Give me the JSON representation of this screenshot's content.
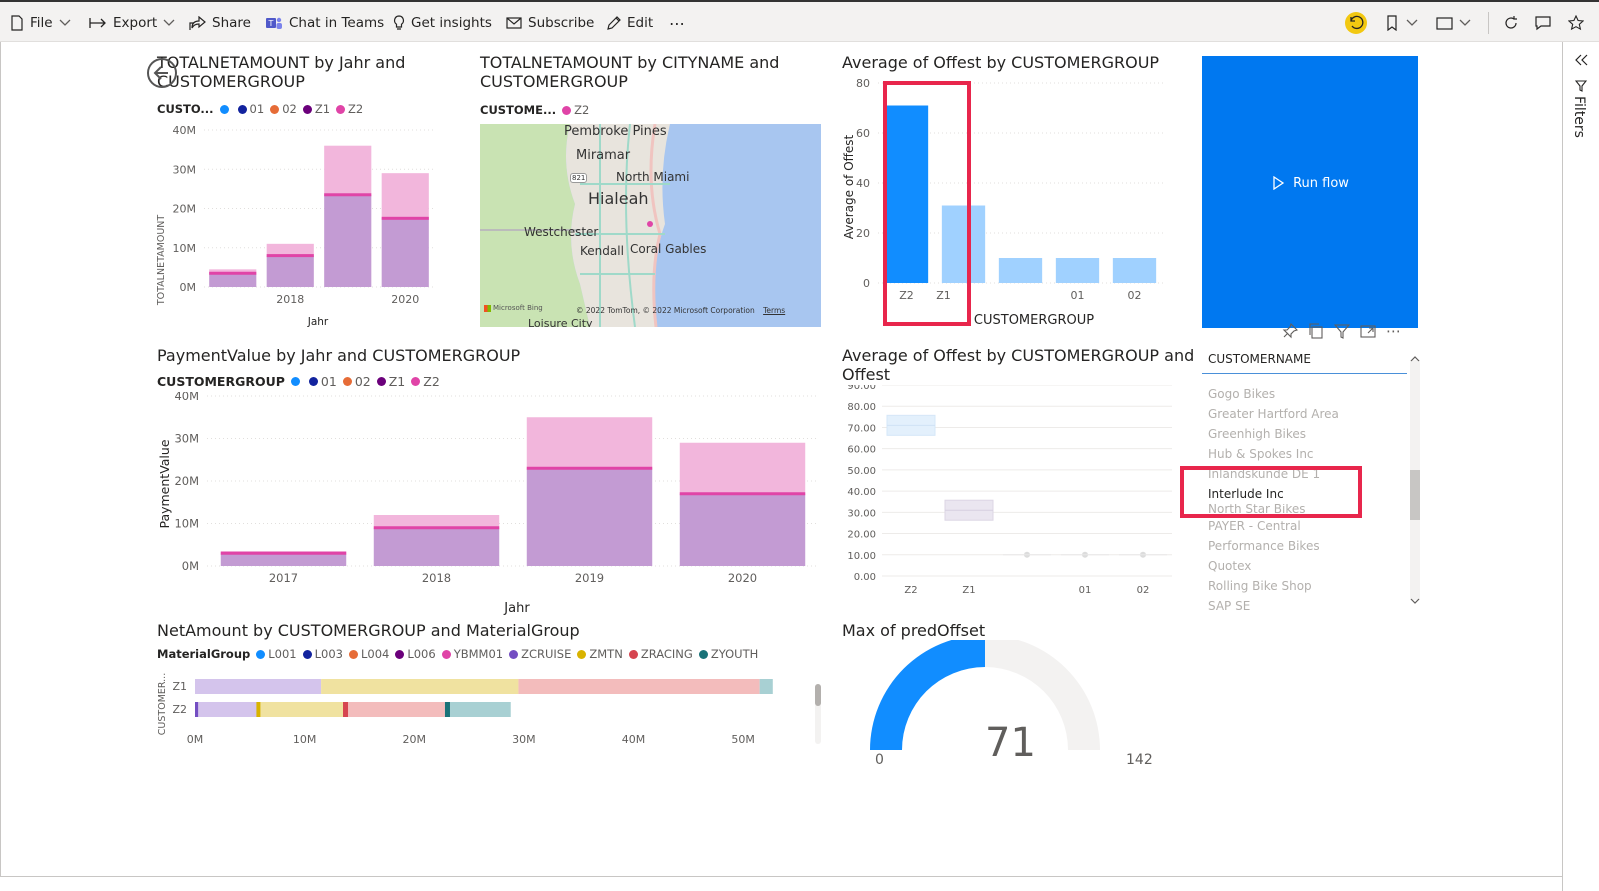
{
  "toolbar": {
    "file": "File",
    "export": "Export",
    "share": "Share",
    "chat": "Chat in Teams",
    "insights": "Get insights",
    "subscribe": "Subscribe",
    "edit": "Edit",
    "more": "⋯"
  },
  "filters_pane": {
    "label": "Filters"
  },
  "visuals": {
    "v1": {
      "title_line1": "TOTALNETAMOUNT by Jahr and",
      "title_line2": "CUSTOMERGROUP",
      "legend_title": "CUSTO...",
      "legend": [
        "",
        "01",
        "02",
        "Z1",
        "Z2"
      ],
      "ylabel": "TOTALNETAMOUNT",
      "xlabel": "Jahr",
      "yticks": [
        "40M",
        "30M",
        "20M",
        "10M",
        "0M"
      ],
      "xticks": [
        "2018",
        "2020"
      ]
    },
    "v2": {
      "title_line1": "TOTALNETAMOUNT by CITYNAME and",
      "title_line2": "CUSTOMERGROUP",
      "legend_title": "CUSTOME...",
      "legend": [
        "Z2"
      ],
      "map_labels": [
        "Pembroke Pines",
        "Miramar",
        "North Miami",
        "Hialeah",
        "Westchester",
        "Kendall",
        "Coral Gables",
        "Loisure City"
      ],
      "road_badge": "821",
      "attribution": "© 2022 TomTom, © 2022 Microsoft Corporation",
      "terms": "Terms",
      "bing": "Microsoft Bing"
    },
    "v3": {
      "title": "Average of Offest by CUSTOMERGROUP",
      "ylabel": "Average of Offest",
      "xlabel": "CUSTOMERGROUP",
      "yticks": [
        "80",
        "60",
        "40",
        "20",
        "0"
      ],
      "xticks": [
        "Z2",
        "Z1",
        "",
        "01",
        "02"
      ]
    },
    "run_flow": {
      "label": "Run flow"
    },
    "v4": {
      "title": "PaymentValue by Jahr and CUSTOMERGROUP",
      "legend_title": "CUSTOMERGROUP",
      "legend": [
        "",
        "01",
        "02",
        "Z1",
        "Z2"
      ],
      "ylabel": "PaymentValue",
      "xlabel": "Jahr",
      "yticks": [
        "40M",
        "30M",
        "20M",
        "10M",
        "0M"
      ],
      "xticks": [
        "2017",
        "2018",
        "2019",
        "2020"
      ]
    },
    "v5": {
      "title_line1": "Average of Offest by CUSTOMERGROUP and",
      "title_line2": "Offest",
      "yticks": [
        "90.00",
        "80.00",
        "70.00",
        "60.00",
        "50.00",
        "40.00",
        "30.00",
        "20.00",
        "10.00",
        "0.00"
      ],
      "xticks": [
        "Z2",
        "Z1",
        "",
        "01",
        "02"
      ]
    },
    "slicer": {
      "header": "CUSTOMERNAME",
      "items": [
        "Gogo Bikes",
        "Greater Hartford Area",
        "Greenhigh Bikes",
        "Hub & Spokes Inc",
        "Inlandskunde DE 1",
        "Interlude Inc",
        "North Star Bikes",
        "PAYER - Central",
        "Performance Bikes",
        "Quotex",
        "Rolling Bike Shop",
        "SAP SE"
      ],
      "selected": "Interlude Inc"
    },
    "v6": {
      "title": "NetAmount by CUSTOMERGROUP and MaterialGroup",
      "legend_title": "MaterialGroup",
      "legend": [
        "L001",
        "L003",
        "L004",
        "L006",
        "YBMM01",
        "ZCRUISE",
        "ZMTN",
        "ZRACING",
        "ZYOUTH"
      ],
      "ylabel": "CUSTOMER...",
      "yticks": [
        "Z1",
        "Z2"
      ],
      "xticks": [
        "0M",
        "10M",
        "20M",
        "30M",
        "40M",
        "50M"
      ]
    },
    "v7": {
      "title": "Max of predOffset",
      "value": "71",
      "min": "0",
      "max": "142"
    }
  },
  "colors": {
    "blank": "#118dff",
    "g01": "#12239e",
    "g02": "#e66c37",
    "gZ1": "#6b007b",
    "gZ2": "#e044a7",
    "accent": "#0078f0",
    "highlight": "#e8264c",
    "yellow_icon": "#f2c811"
  },
  "chart_data": [
    {
      "type": "bar",
      "title": "TOTALNETAMOUNT by Jahr and CUSTOMERGROUP",
      "categories": [
        "2017",
        "2018",
        "2019",
        "2020"
      ],
      "series": [
        {
          "name": "Z1",
          "values": [
            3.5,
            8,
            23.5,
            17.5
          ]
        },
        {
          "name": "Z2",
          "values": [
            1,
            3,
            12.5,
            11.5
          ]
        }
      ],
      "xlabel": "Jahr",
      "ylabel": "TOTALNETAMOUNT",
      "ylim": [
        0,
        40
      ]
    },
    {
      "type": "bar",
      "title": "Average of Offest by CUSTOMERGROUP",
      "categories": [
        "Z2",
        "Z1",
        "",
        "01",
        "02"
      ],
      "values": [
        71,
        31,
        10,
        10,
        10
      ],
      "xlabel": "CUSTOMERGROUP",
      "ylabel": "Average of Offest",
      "ylim": [
        0,
        80
      ]
    },
    {
      "type": "bar",
      "title": "PaymentValue by Jahr and CUSTOMERGROUP",
      "categories": [
        "2017",
        "2018",
        "2019",
        "2020"
      ],
      "series": [
        {
          "name": "Z1",
          "values": [
            3,
            9,
            23,
            17
          ]
        },
        {
          "name": "Z2",
          "values": [
            0.5,
            3,
            12,
            12
          ]
        }
      ],
      "xlabel": "Jahr",
      "ylabel": "PaymentValue",
      "ylim": [
        0,
        40
      ]
    },
    {
      "type": "scatter",
      "title": "Average of Offest by CUSTOMERGROUP and Offest",
      "categories": [
        "Z2",
        "Z1",
        "",
        "01",
        "02"
      ],
      "values": [
        71,
        31,
        10,
        10,
        10
      ],
      "ylim": [
        0,
        90
      ]
    },
    {
      "type": "bar",
      "title": "NetAmount by CUSTOMERGROUP and MaterialGroup",
      "categories": [
        "Z1",
        "Z2"
      ],
      "series": [
        {
          "name": "L006",
          "values": [
            0,
            0.3
          ]
        },
        {
          "name": "YBMM01",
          "values": [
            11.5,
            5.5
          ]
        },
        {
          "name": "ZMTN",
          "values": [
            18,
            8
          ]
        },
        {
          "name": "ZRACING",
          "values": [
            22,
            9
          ]
        },
        {
          "name": "ZYOUTH",
          "values": [
            1.2,
            6
          ]
        }
      ],
      "xlim": [
        0,
        55
      ]
    },
    {
      "type": "gauge",
      "title": "Max of predOffset",
      "value": 71,
      "min": 0,
      "max": 142
    }
  ]
}
